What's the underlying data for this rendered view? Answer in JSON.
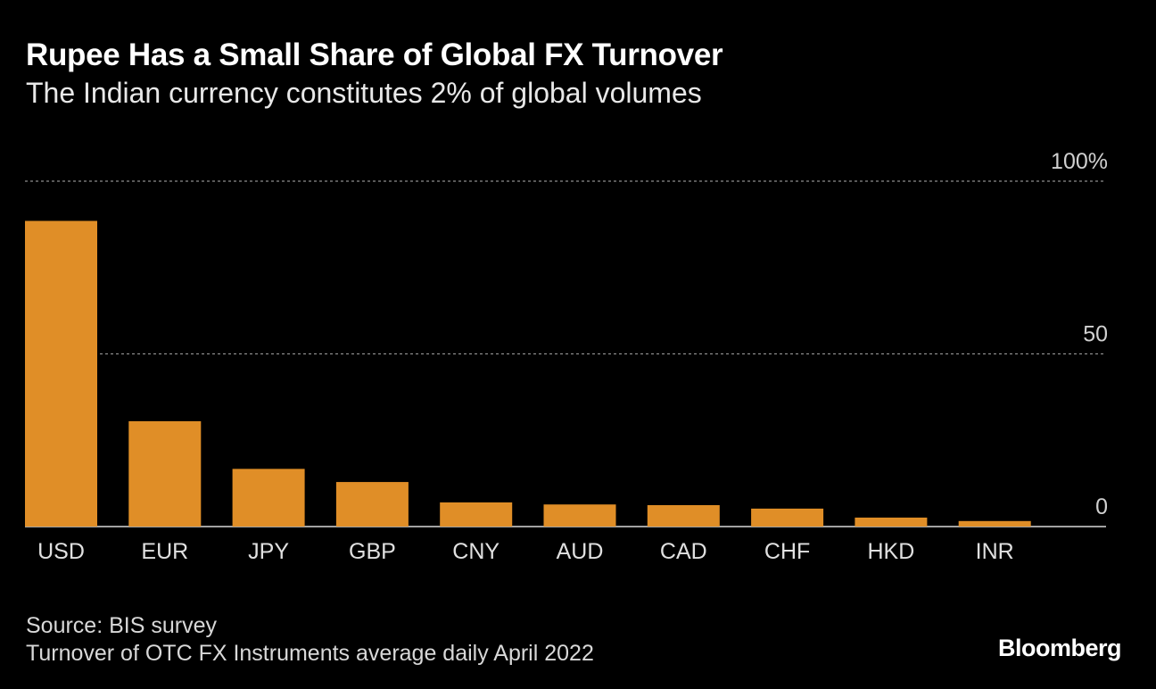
{
  "title": "Rupee Has a Small Share of Global FX Turnover",
  "subtitle": "The Indian currency constitutes 2% of global volumes",
  "source": "Source: BIS survey",
  "note": "Turnover of OTC FX Instruments average daily April 2022",
  "brand": "Bloomberg",
  "colors": {
    "bar": "#e08e27",
    "background": "#000000",
    "grid": "#8c8c8c",
    "text": "#ffffff",
    "tick": "#d0d0d0"
  },
  "chart_data": {
    "type": "bar",
    "title": "Rupee Has a Small Share of Global FX Turnover",
    "xlabel": "",
    "ylabel": "",
    "ylim": [
      0,
      100
    ],
    "yticks": [
      0,
      50,
      100
    ],
    "ytick_labels": [
      "0",
      "50",
      "100%"
    ],
    "grid": true,
    "categories": [
      "USD",
      "EUR",
      "JPY",
      "GBP",
      "CNY",
      "AUD",
      "CAD",
      "CHF",
      "HKD",
      "INR"
    ],
    "values": [
      88.5,
      30.5,
      16.7,
      12.9,
      7.0,
      6.4,
      6.2,
      5.2,
      2.6,
      1.6
    ]
  }
}
